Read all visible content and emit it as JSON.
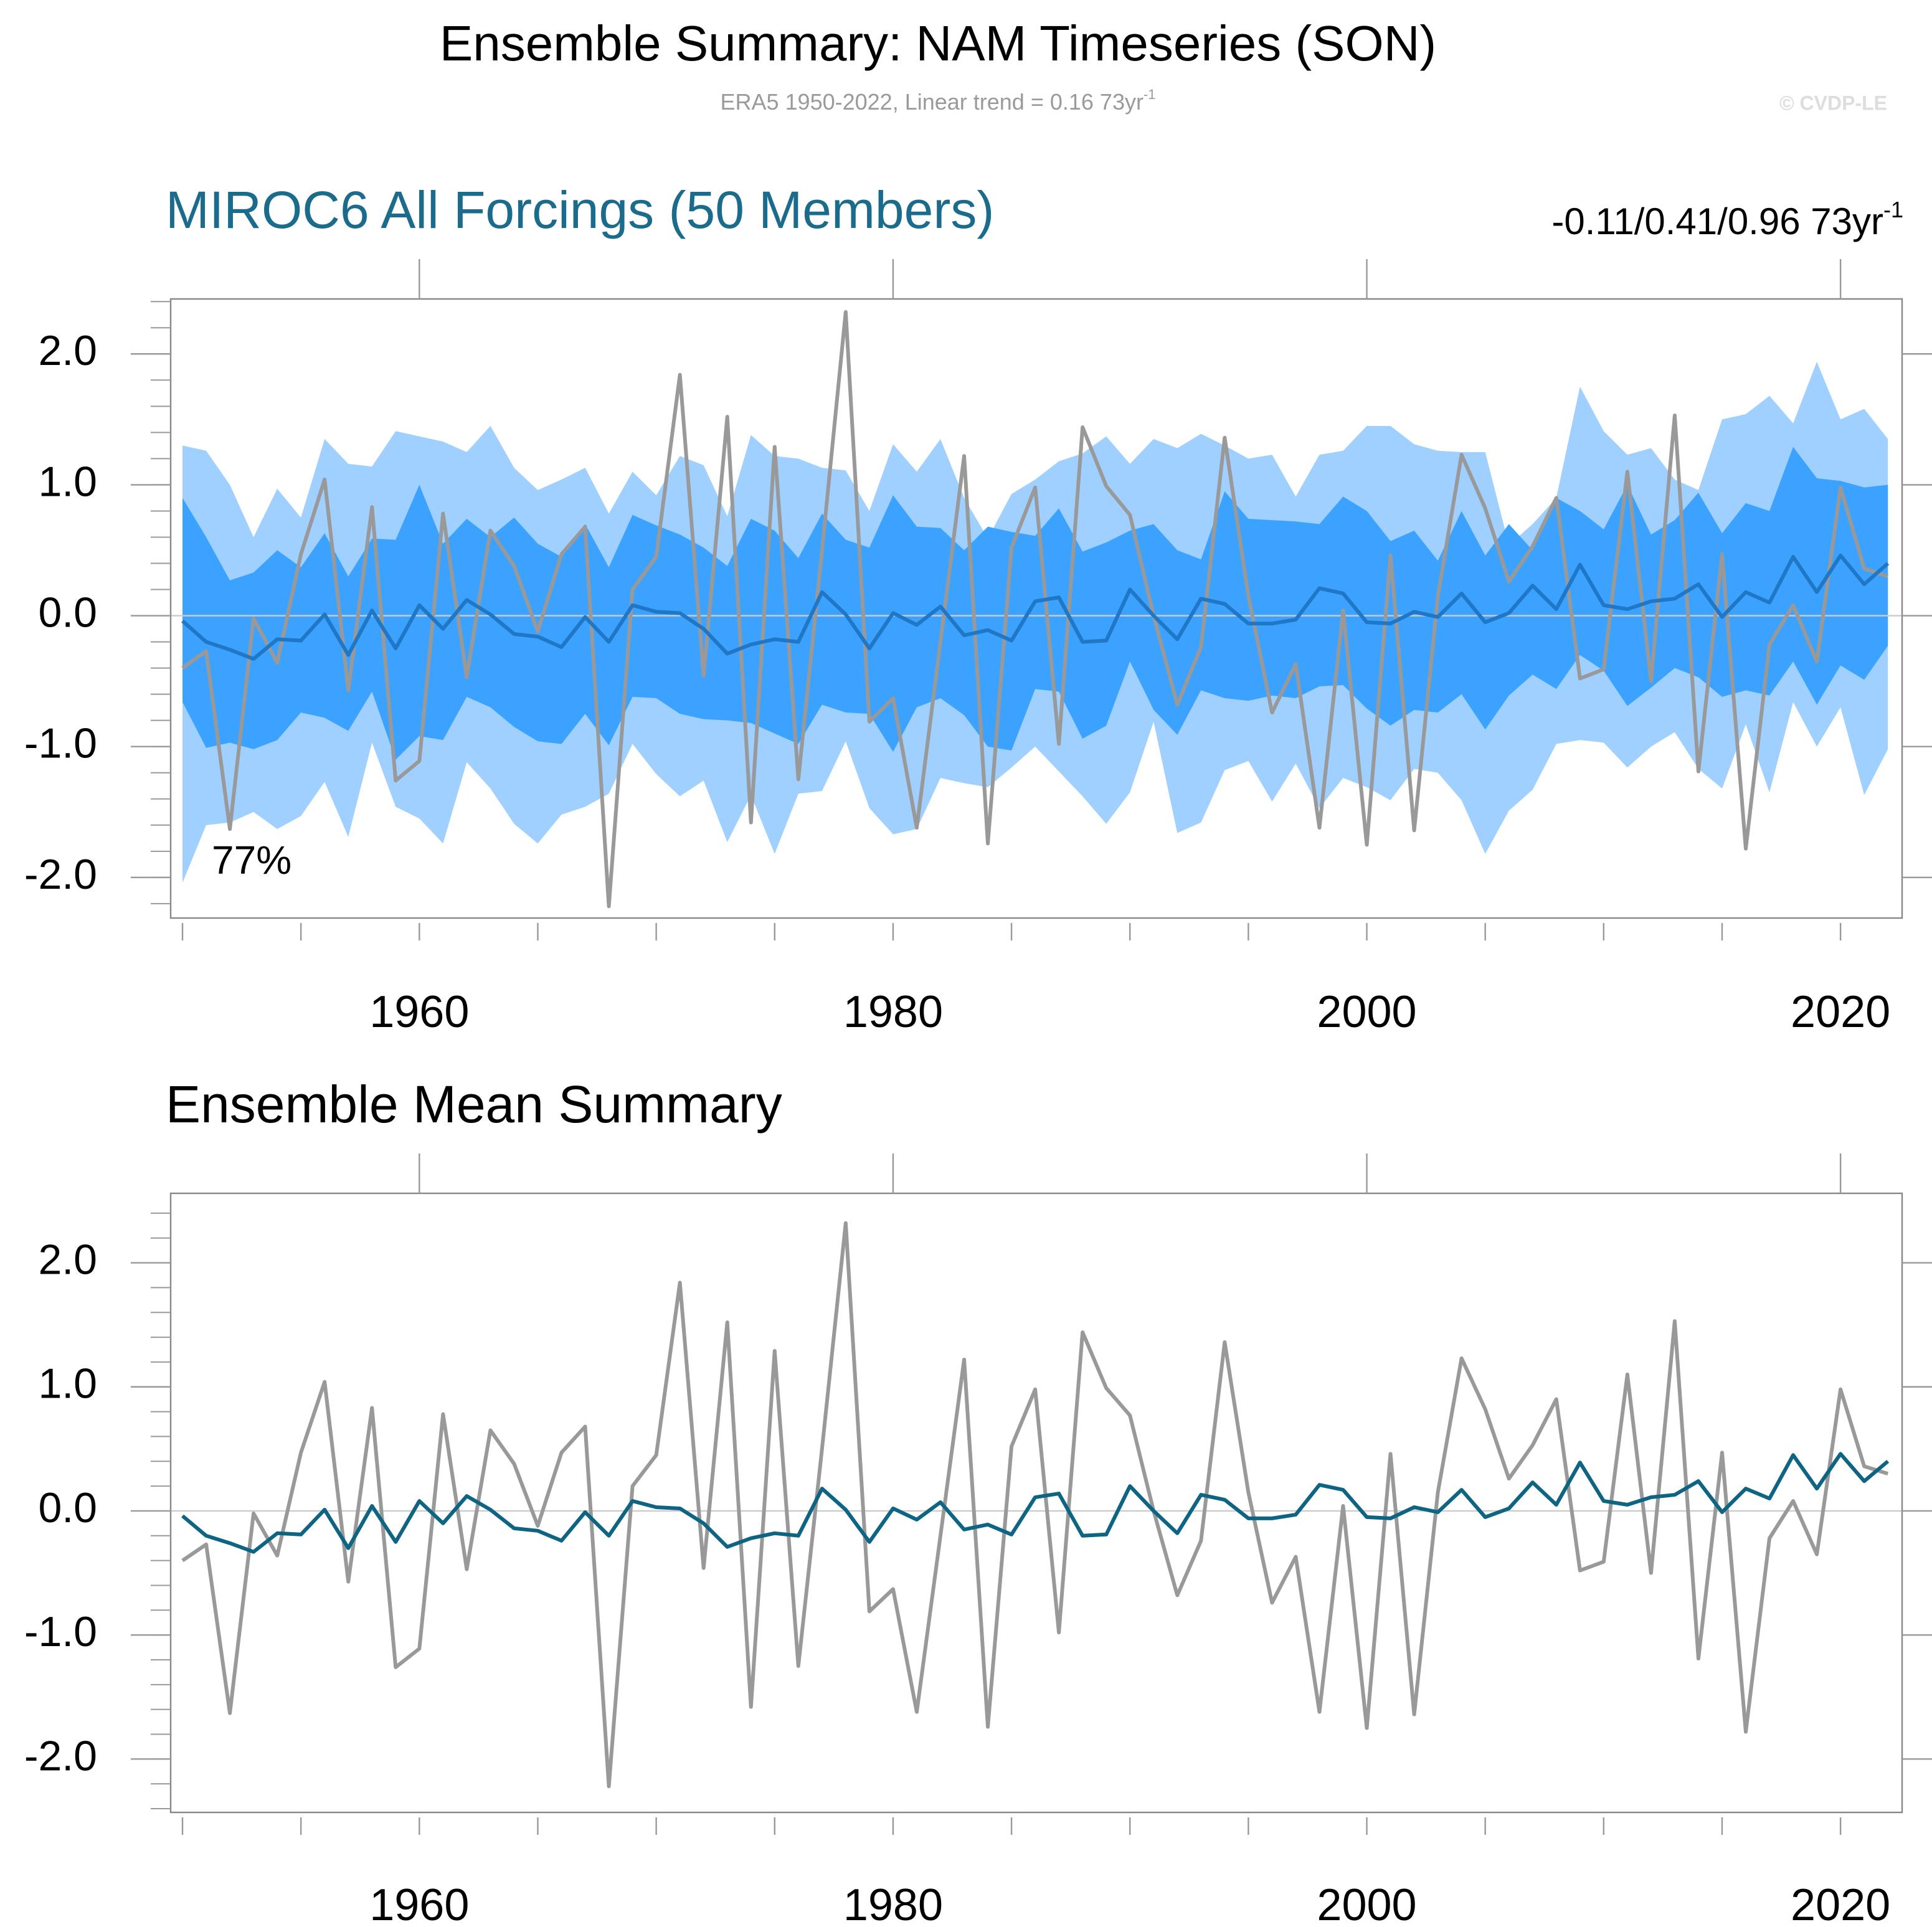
{
  "title": "Ensemble Summary: NAM Timeseries (SON)",
  "subtitle": "ERA5 1950-2022, Linear trend = 0.16 73yr",
  "subtitle_sup": "-1",
  "credit": "© CVDP-LE",
  "chart_data": [
    {
      "type": "band-line",
      "title": "MIROC6 All Forcings (50 Members)",
      "title_color": "#1b6c8c",
      "annotation": "-0.11/0.41/0.96 73yr",
      "annotation_sup": "-1",
      "inset_label": "77%",
      "x": [
        1950,
        1951,
        1952,
        1953,
        1954,
        1955,
        1956,
        1957,
        1958,
        1959,
        1960,
        1961,
        1962,
        1963,
        1964,
        1965,
        1966,
        1967,
        1968,
        1969,
        1970,
        1971,
        1972,
        1973,
        1974,
        1975,
        1976,
        1977,
        1978,
        1979,
        1980,
        1981,
        1982,
        1983,
        1984,
        1985,
        1986,
        1987,
        1988,
        1989,
        1990,
        1991,
        1992,
        1993,
        1994,
        1995,
        1996,
        1997,
        1998,
        1999,
        2000,
        2001,
        2002,
        2003,
        2004,
        2005,
        2006,
        2007,
        2008,
        2009,
        2010,
        2011,
        2012,
        2013,
        2014,
        2015,
        2016,
        2017,
        2018,
        2019,
        2020,
        2021,
        2022
      ],
      "bands": [
        {
          "color": "#9fd0ff",
          "upper": [
            1.3,
            1.26,
            1.0,
            0.6,
            0.97,
            0.75,
            1.35,
            1.16,
            1.14,
            1.41,
            1.37,
            1.33,
            1.25,
            1.45,
            1.13,
            0.96,
            1.04,
            1.13,
            0.78,
            1.1,
            0.92,
            1.22,
            1.15,
            0.76,
            1.38,
            1.22,
            1.2,
            1.13,
            1.11,
            0.8,
            1.31,
            1.1,
            1.35,
            0.9,
            0.59,
            0.93,
            1.04,
            1.18,
            1.24,
            1.37,
            1.16,
            1.35,
            1.28,
            1.39,
            1.3,
            1.2,
            1.23,
            0.91,
            1.23,
            1.26,
            1.45,
            1.45,
            1.31,
            1.26,
            1.25,
            1.25,
            0.54,
            0.7,
            0.9,
            1.75,
            1.41,
            1.23,
            1.28,
            1.04,
            0.96,
            1.5,
            1.54,
            1.68,
            1.47,
            1.94,
            1.5,
            1.58,
            1.35
          ],
          "lower": [
            -2.04,
            -1.6,
            -1.58,
            -1.5,
            -1.63,
            -1.53,
            -1.27,
            -1.69,
            -0.97,
            -1.46,
            -1.55,
            -1.74,
            -1.12,
            -1.32,
            -1.59,
            -1.74,
            -1.52,
            -1.46,
            -1.36,
            -0.98,
            -1.21,
            -1.38,
            -1.26,
            -1.73,
            -1.37,
            -1.82,
            -1.36,
            -1.34,
            -0.96,
            -1.47,
            -1.67,
            -1.63,
            -1.24,
            -1.28,
            -1.31,
            -1.16,
            -1.0,
            -1.19,
            -1.38,
            -1.59,
            -1.35,
            -0.81,
            -1.66,
            -1.58,
            -1.18,
            -1.11,
            -1.42,
            -1.13,
            -1.47,
            -1.24,
            -1.31,
            -1.41,
            -1.17,
            -1.2,
            -1.41,
            -1.82,
            -1.49,
            -1.33,
            -0.98,
            -0.95,
            -0.97,
            -1.16,
            -1.0,
            -0.89,
            -1.17,
            -1.32,
            -0.83,
            -1.35,
            -0.66,
            -1.0,
            -0.7,
            -1.37,
            -1.02
          ]
        },
        {
          "color": "#3ba2ff",
          "upper": [
            0.9,
            0.6,
            0.27,
            0.33,
            0.5,
            0.37,
            0.63,
            0.3,
            0.59,
            0.58,
            1.0,
            0.55,
            0.74,
            0.6,
            0.75,
            0.55,
            0.45,
            0.7,
            0.37,
            0.77,
            0.69,
            0.62,
            0.52,
            0.38,
            0.74,
            0.65,
            0.44,
            0.78,
            0.58,
            0.52,
            0.92,
            0.68,
            0.67,
            0.5,
            0.68,
            0.64,
            0.61,
            0.82,
            0.49,
            0.56,
            0.65,
            0.7,
            0.5,
            0.43,
            0.95,
            0.74,
            0.73,
            0.72,
            0.7,
            0.91,
            0.8,
            0.57,
            0.65,
            0.42,
            0.8,
            0.46,
            0.7,
            0.5,
            0.9,
            0.8,
            0.66,
            1.0,
            0.62,
            0.73,
            0.94,
            0.63,
            0.86,
            0.8,
            1.29,
            1.05,
            1.03,
            0.98,
            1.0
          ],
          "lower": [
            -0.66,
            -1.01,
            -0.97,
            -1.02,
            -0.95,
            -0.74,
            -0.78,
            -0.88,
            -0.58,
            -1.1,
            -0.92,
            -0.95,
            -0.62,
            -0.7,
            -0.85,
            -0.96,
            -0.98,
            -0.75,
            -0.99,
            -0.62,
            -0.63,
            -0.75,
            -0.79,
            -0.8,
            -0.82,
            -0.9,
            -0.98,
            -0.68,
            -0.74,
            -0.75,
            -1.04,
            -0.7,
            -0.63,
            -0.76,
            -1.0,
            -1.03,
            -0.56,
            -0.58,
            -0.94,
            -0.84,
            -0.35,
            -0.72,
            -0.91,
            -0.57,
            -0.63,
            -0.65,
            -0.61,
            -0.63,
            -0.54,
            -0.53,
            -0.71,
            -0.84,
            -0.72,
            -0.74,
            -0.6,
            -0.87,
            -0.61,
            -0.45,
            -0.56,
            -0.3,
            -0.42,
            -0.69,
            -0.55,
            -0.4,
            -0.47,
            -0.62,
            -0.57,
            -0.61,
            -0.35,
            -0.68,
            -0.38,
            -0.49,
            -0.23
          ]
        }
      ],
      "series": [
        {
          "color": "#999999",
          "values": [
            -0.4,
            -0.27,
            -1.63,
            -0.02,
            -0.36,
            0.47,
            1.04,
            -0.57,
            0.83,
            -1.26,
            -1.11,
            0.78,
            -0.47,
            0.65,
            0.38,
            -0.12,
            0.47,
            0.68,
            -2.22,
            0.2,
            0.45,
            1.84,
            -0.46,
            1.52,
            -1.58,
            1.29,
            -1.25,
            0.5,
            2.32,
            -0.81,
            -0.63,
            -1.62,
            -0.2,
            1.22,
            -1.74,
            0.52,
            0.98,
            -0.98,
            1.44,
            0.99,
            0.77,
            0.0,
            -0.68,
            -0.24,
            1.36,
            0.15,
            -0.74,
            -0.37,
            -1.62,
            0.04,
            -1.75,
            0.46,
            -1.64,
            0.15,
            1.23,
            0.82,
            0.26,
            0.53,
            0.9,
            -0.48,
            -0.41,
            1.1,
            -0.5,
            1.53,
            -1.19,
            0.47,
            -1.78,
            -0.22,
            0.08,
            -0.35,
            0.98,
            0.36,
            0.3
          ]
        },
        {
          "color": "#2077c6",
          "values": [
            -0.04,
            -0.2,
            -0.26,
            -0.33,
            -0.18,
            -0.19,
            0.01,
            -0.3,
            0.04,
            -0.25,
            0.08,
            -0.1,
            0.12,
            0.01,
            -0.14,
            -0.16,
            -0.24,
            -0.01,
            -0.2,
            0.08,
            0.03,
            0.02,
            -0.1,
            -0.29,
            -0.22,
            -0.18,
            -0.2,
            0.18,
            0.01,
            -0.25,
            0.02,
            -0.07,
            0.07,
            -0.15,
            -0.11,
            -0.19,
            0.11,
            0.14,
            -0.2,
            -0.19,
            0.2,
            0.0,
            -0.18,
            0.13,
            0.09,
            -0.06,
            -0.06,
            -0.03,
            0.21,
            0.17,
            -0.05,
            -0.06,
            0.03,
            -0.01,
            0.17,
            -0.05,
            0.02,
            0.23,
            0.05,
            0.39,
            0.08,
            0.05,
            0.11,
            0.13,
            0.24,
            -0.01,
            0.18,
            0.1,
            0.45,
            0.18,
            0.46,
            0.24,
            0.4
          ]
        }
      ],
      "reference_line": 0,
      "xlim": [
        1949.5,
        2022.6
      ],
      "xticks": [
        1960,
        1980,
        2000,
        2020
      ],
      "xminorticks": [
        1950,
        1955,
        1960,
        1965,
        1970,
        1975,
        1980,
        1985,
        1990,
        1995,
        2000,
        2005,
        2010,
        2015,
        2020
      ],
      "ylim": [
        -2.31,
        2.42
      ],
      "yticks": [
        {
          "value": -2,
          "label": "-2.0"
        },
        {
          "value": -1,
          "label": "-1.0"
        },
        {
          "value": 0,
          "label": "0.0"
        },
        {
          "value": 1,
          "label": "1.0"
        },
        {
          "value": 2,
          "label": "2.0"
        }
      ],
      "yminorticks": [
        -2.2,
        -2.0,
        -1.8,
        -1.6,
        -1.4,
        -1.2,
        -1.0,
        -0.8,
        -0.6,
        -0.4,
        -0.2,
        0,
        0.2,
        0.4,
        0.6,
        0.8,
        1.0,
        1.2,
        1.4,
        1.6,
        1.8,
        2.0,
        2.2,
        2.4
      ]
    },
    {
      "type": "line",
      "title": "Ensemble Mean Summary",
      "title_color": "#000000",
      "x": [
        1950,
        1951,
        1952,
        1953,
        1954,
        1955,
        1956,
        1957,
        1958,
        1959,
        1960,
        1961,
        1962,
        1963,
        1964,
        1965,
        1966,
        1967,
        1968,
        1969,
        1970,
        1971,
        1972,
        1973,
        1974,
        1975,
        1976,
        1977,
        1978,
        1979,
        1980,
        1981,
        1982,
        1983,
        1984,
        1985,
        1986,
        1987,
        1988,
        1989,
        1990,
        1991,
        1992,
        1993,
        1994,
        1995,
        1996,
        1997,
        1998,
        1999,
        2000,
        2001,
        2002,
        2003,
        2004,
        2005,
        2006,
        2007,
        2008,
        2009,
        2010,
        2011,
        2012,
        2013,
        2014,
        2015,
        2016,
        2017,
        2018,
        2019,
        2020,
        2021,
        2022
      ],
      "series": [
        {
          "color": "#999999",
          "values": [
            -0.4,
            -0.27,
            -1.63,
            -0.02,
            -0.36,
            0.47,
            1.04,
            -0.57,
            0.83,
            -1.26,
            -1.11,
            0.78,
            -0.47,
            0.65,
            0.38,
            -0.12,
            0.47,
            0.68,
            -2.22,
            0.2,
            0.45,
            1.84,
            -0.46,
            1.52,
            -1.58,
            1.29,
            -1.25,
            0.5,
            2.32,
            -0.81,
            -0.63,
            -1.62,
            -0.2,
            1.22,
            -1.74,
            0.52,
            0.98,
            -0.98,
            1.44,
            0.99,
            0.77,
            0.0,
            -0.68,
            -0.24,
            1.36,
            0.15,
            -0.74,
            -0.37,
            -1.62,
            0.04,
            -1.75,
            0.46,
            -1.64,
            0.15,
            1.23,
            0.82,
            0.26,
            0.53,
            0.9,
            -0.48,
            -0.41,
            1.1,
            -0.5,
            1.53,
            -1.19,
            0.47,
            -1.78,
            -0.22,
            0.08,
            -0.35,
            0.98,
            0.36,
            0.3
          ]
        },
        {
          "color": "#0e6583",
          "values": [
            -0.04,
            -0.2,
            -0.26,
            -0.33,
            -0.18,
            -0.19,
            0.01,
            -0.3,
            0.04,
            -0.25,
            0.08,
            -0.1,
            0.12,
            0.01,
            -0.14,
            -0.16,
            -0.24,
            -0.01,
            -0.2,
            0.08,
            0.03,
            0.02,
            -0.1,
            -0.29,
            -0.22,
            -0.18,
            -0.2,
            0.18,
            0.01,
            -0.25,
            0.02,
            -0.07,
            0.07,
            -0.15,
            -0.11,
            -0.19,
            0.11,
            0.14,
            -0.2,
            -0.19,
            0.2,
            0.0,
            -0.18,
            0.13,
            0.09,
            -0.06,
            -0.06,
            -0.03,
            0.21,
            0.17,
            -0.05,
            -0.06,
            0.03,
            -0.01,
            0.17,
            -0.05,
            0.02,
            0.23,
            0.05,
            0.39,
            0.08,
            0.05,
            0.11,
            0.13,
            0.24,
            -0.01,
            0.18,
            0.1,
            0.45,
            0.18,
            0.46,
            0.24,
            0.4
          ]
        }
      ],
      "reference_line": 0,
      "xlim": [
        1949.5,
        2022.6
      ],
      "xticks": [
        1960,
        1980,
        2000,
        2020
      ],
      "xminorticks": [
        1950,
        1955,
        1960,
        1965,
        1970,
        1975,
        1980,
        1985,
        1990,
        1995,
        2000,
        2005,
        2010,
        2015,
        2020
      ],
      "ylim": [
        -2.43,
        2.56
      ],
      "yticks": [
        {
          "value": -2,
          "label": "-2.0"
        },
        {
          "value": -1,
          "label": "-1.0"
        },
        {
          "value": 0,
          "label": "0.0"
        },
        {
          "value": 1,
          "label": "1.0"
        },
        {
          "value": 2,
          "label": "2.0"
        }
      ],
      "yminorticks": [
        -2.4,
        -2.2,
        -2.0,
        -1.8,
        -1.6,
        -1.4,
        -1.2,
        -1.0,
        -0.8,
        -0.6,
        -0.4,
        -0.2,
        0,
        0.2,
        0.4,
        0.6,
        0.8,
        1.0,
        1.2,
        1.4,
        1.6,
        1.8,
        2.0,
        2.2,
        2.4
      ]
    }
  ]
}
